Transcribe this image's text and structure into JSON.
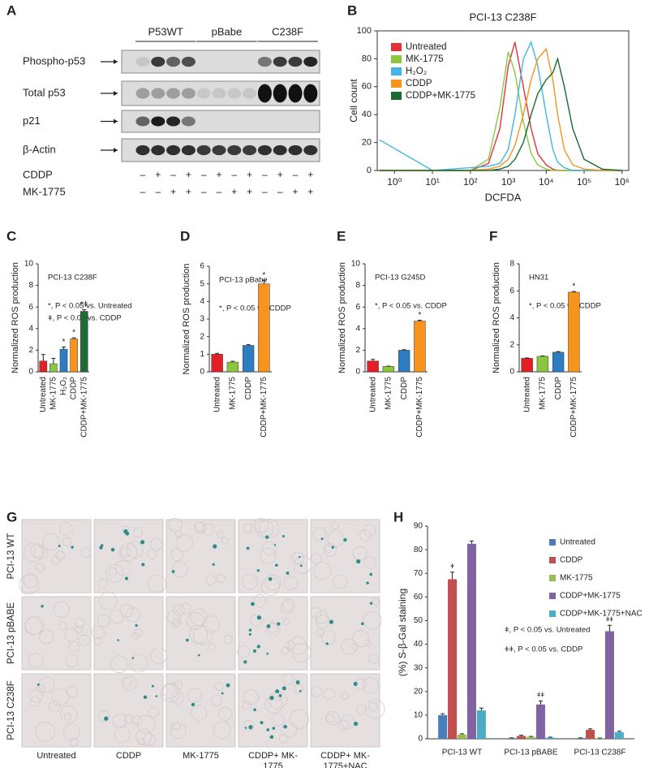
{
  "panel_labels": [
    "A",
    "B",
    "C",
    "D",
    "E",
    "F",
    "G",
    "H"
  ],
  "western": {
    "groups": [
      "P53WT",
      "pBabe",
      "C238F"
    ],
    "rows": [
      "Phospho-p53",
      "Total p53",
      "p21",
      "β-Actin"
    ],
    "treatments": [
      {
        "name": "CDDP",
        "signs": [
          "–",
          "+",
          "–",
          "+",
          "–",
          "+",
          "–",
          "+",
          "–",
          "+",
          "–",
          "+"
        ]
      },
      {
        "name": "MK-1775",
        "signs": [
          "–",
          "–",
          "+",
          "+",
          "–",
          "–",
          "+",
          "+",
          "–",
          "–",
          "+",
          "+"
        ]
      }
    ]
  },
  "micrographs": {
    "rows": [
      "PCI-13 WT",
      "PCI-13 pBABE",
      "PCI-13 C238F"
    ],
    "columns": [
      "Untreated",
      "CDDP",
      "MK-1775",
      "CDDP+ MK-1775",
      "CDDP+ MK-1775+NAC"
    ]
  },
  "chart_data": [
    {
      "type": "line",
      "title": "PCI-13 C238F",
      "x_label": "DCFDA",
      "y_label": "Cell count",
      "xscale": "log",
      "x": [
        0.4,
        10,
        100,
        300,
        600,
        1000,
        1500,
        2500,
        4000,
        6000,
        10000,
        15000,
        20000,
        30000,
        50000,
        100000,
        300000,
        1000000
      ],
      "series": [
        {
          "name": "Untreated",
          "color": "#e8303a",
          "values": [
            0,
            0,
            0,
            5,
            30,
            75,
            92,
            60,
            30,
            12,
            4,
            1,
            0,
            0,
            0,
            0,
            0,
            0
          ]
        },
        {
          "name": "MK-1775",
          "color": "#8dc63f",
          "values": [
            0,
            0,
            0,
            8,
            45,
            85,
            70,
            35,
            12,
            4,
            1,
            0,
            0,
            0,
            0,
            0,
            0,
            0
          ]
        },
        {
          "name": "H₂O₂",
          "color": "#41b6e6",
          "values": [
            22,
            0,
            2,
            3,
            5,
            15,
            40,
            80,
            92,
            75,
            40,
            15,
            6,
            2,
            0,
            0,
            0,
            0
          ]
        },
        {
          "name": "CDDP",
          "color": "#f7941d",
          "values": [
            0,
            0,
            0,
            1,
            3,
            8,
            18,
            40,
            65,
            80,
            87,
            65,
            40,
            15,
            4,
            1,
            0,
            0
          ]
        },
        {
          "name": "CDDP+MK-1775",
          "color": "#1a6b2e",
          "values": [
            0,
            0,
            0,
            0,
            1,
            3,
            8,
            20,
            40,
            55,
            65,
            70,
            80,
            60,
            30,
            8,
            1,
            0
          ]
        }
      ],
      "xlim": [
        0.35,
        1500000
      ],
      "xticks": [
        {
          "value": 1,
          "label": "10⁰"
        },
        {
          "value": 10,
          "label": "10¹"
        },
        {
          "value": 100,
          "label": "10²"
        },
        {
          "value": 1000,
          "label": "10³"
        },
        {
          "value": 10000,
          "label": "10⁴"
        },
        {
          "value": 100000,
          "label": "10⁵"
        },
        {
          "value": 1000000,
          "label": "10⁶"
        }
      ],
      "ylim": [
        0,
        100
      ],
      "yticks": [
        0,
        20,
        40,
        60,
        80,
        100
      ]
    },
    {
      "type": "bar",
      "title": "PCI-13 C238F",
      "y_label": "Normalized ROS production",
      "categories": [
        "Untreated",
        "MK-1775",
        "H₂O₂",
        "CDDP",
        "CDDP+MK-1775"
      ],
      "values": [
        1.0,
        0.75,
        2.1,
        3.05,
        5.6
      ],
      "errors": [
        0.6,
        0.5,
        0.2,
        0.1,
        0.15
      ],
      "markers": [
        null,
        null,
        "*",
        "*",
        "*ǂ"
      ],
      "colors": [
        "#e31e25",
        "#8cc63f",
        "#2f7dc1",
        "#f7941d",
        "#1e6b35"
      ],
      "annotations": [
        "*, P < 0.05 vs. Untreated",
        "ǂ, P < 0.05 vs. CDDP"
      ],
      "ylim": [
        0,
        10
      ],
      "yticks": [
        0,
        2,
        4,
        6,
        8,
        10
      ]
    },
    {
      "type": "bar",
      "title": "PCI-13 pBabe",
      "y_label": "Normalized ROS production",
      "categories": [
        "Untreated",
        "MK-1775",
        "CDDP",
        "CDDP+MK-1775"
      ],
      "values": [
        1.0,
        0.55,
        1.5,
        5.0
      ],
      "errors": [
        0.05,
        0.05,
        0.05,
        0.2
      ],
      "markers": [
        null,
        null,
        null,
        "*"
      ],
      "colors": [
        "#e31e25",
        "#8cc63f",
        "#2f7dc1",
        "#f7941d"
      ],
      "annotations": [
        "*, P < 0.05 vs. CDDP"
      ],
      "ylim": [
        0,
        6
      ],
      "yticks": [
        0,
        1,
        2,
        3,
        4,
        5,
        6
      ]
    },
    {
      "type": "bar",
      "title": "PCI-13 G245D",
      "y_label": "Normalized ROS production",
      "categories": [
        "Untreated",
        "MK-1775",
        "CDDP",
        "CDDP+MK-1775"
      ],
      "values": [
        1.0,
        0.5,
        2.0,
        4.7
      ],
      "errors": [
        0.15,
        0.03,
        0.05,
        0.08
      ],
      "markers": [
        null,
        null,
        null,
        "*"
      ],
      "colors": [
        "#e31e25",
        "#8cc63f",
        "#2f7dc1",
        "#f7941d"
      ],
      "annotations": [
        "*, P < 0.05 vs. CDDP"
      ],
      "ylim": [
        0,
        10
      ],
      "yticks": [
        0,
        2,
        4,
        6,
        8,
        10
      ]
    },
    {
      "type": "bar",
      "title": "HN31",
      "y_label": "Normalized ROS production",
      "categories": [
        "Untreated",
        "MK-1775",
        "CDDP",
        "CDDP+MK-1775"
      ],
      "values": [
        1.0,
        1.15,
        1.45,
        5.9
      ],
      "errors": [
        0.03,
        0.03,
        0.05,
        0.05
      ],
      "markers": [
        null,
        null,
        null,
        "*"
      ],
      "colors": [
        "#e31e25",
        "#8cc63f",
        "#2f7dc1",
        "#f7941d"
      ],
      "annotations": [
        "*, P < 0.05 vs. CDDP"
      ],
      "ylim": [
        0,
        8
      ],
      "yticks": [
        0,
        2,
        4,
        6,
        8
      ]
    },
    {
      "type": "grouped_bar",
      "y_label": "(%) S-β-Gal staining",
      "categories": [
        "PCI-13 WT",
        "PCI-13 pBABE",
        "PCI-13 C238F"
      ],
      "series": [
        {
          "name": "Untreated",
          "color": "#4a7ebb",
          "values": [
            10,
            0.3,
            0.3
          ],
          "errors": [
            0.6,
            0.1,
            0.1
          ]
        },
        {
          "name": "CDDP",
          "color": "#c0504d",
          "values": [
            67.5,
            1.2,
            3.8
          ],
          "errors": [
            3,
            0.3,
            0.4
          ],
          "markers": [
            "ǂ",
            null,
            null
          ]
        },
        {
          "name": "MK-1775",
          "color": "#9bbb59",
          "values": [
            1.8,
            0.8,
            0.2
          ],
          "errors": [
            0.3,
            0.2,
            0.1
          ]
        },
        {
          "name": "CDDP+MK-1775",
          "color": "#8064a2",
          "values": [
            82.5,
            14.5,
            45.5
          ],
          "errors": [
            1.2,
            1.5,
            2.5
          ],
          "markers": [
            null,
            "ǂǂ",
            "ǂǂ"
          ]
        },
        {
          "name": "CDDP+MK-1775+NAC",
          "color": "#4bacc6",
          "values": [
            12,
            0.5,
            2.8
          ],
          "errors": [
            1,
            0.2,
            0.4
          ]
        }
      ],
      "annotations": [
        "ǂ, P < 0.05 vs. Untreated",
        "ǂǂ, P < 0.05 vs. CDDP"
      ],
      "ylim": [
        0,
        90
      ],
      "yticks": [
        0,
        10,
        20,
        30,
        40,
        50,
        60,
        70,
        80,
        90
      ]
    }
  ]
}
